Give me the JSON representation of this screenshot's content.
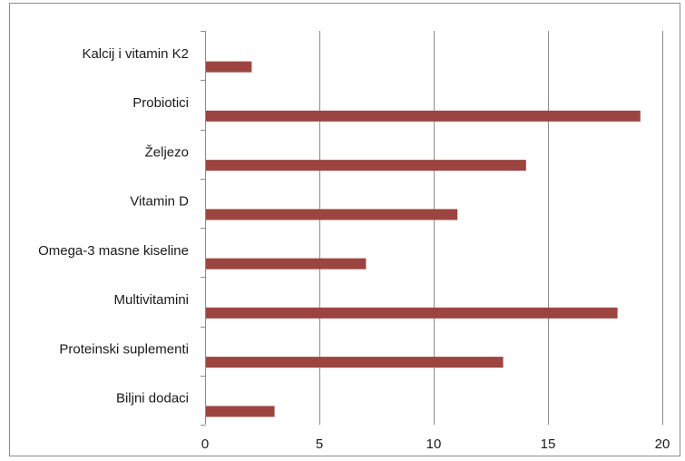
{
  "chart_data": {
    "type": "bar",
    "orientation": "horizontal",
    "categories": [
      "Kalcij i vitamin K2",
      "Probiotici",
      "Željezo",
      "Vitamin D",
      "Omega-3 masne kiseline",
      "Multivitamini",
      "Proteinski suplementi",
      "Biljni dodaci"
    ],
    "values": [
      2,
      19,
      14,
      11,
      7,
      18,
      13,
      3
    ],
    "xlim": [
      0,
      20
    ],
    "xticks": [
      0,
      5,
      10,
      15,
      20
    ],
    "title": "",
    "xlabel": "",
    "ylabel": "",
    "grid": "vertical",
    "legend": "none",
    "bar_color": "#9c4540"
  }
}
